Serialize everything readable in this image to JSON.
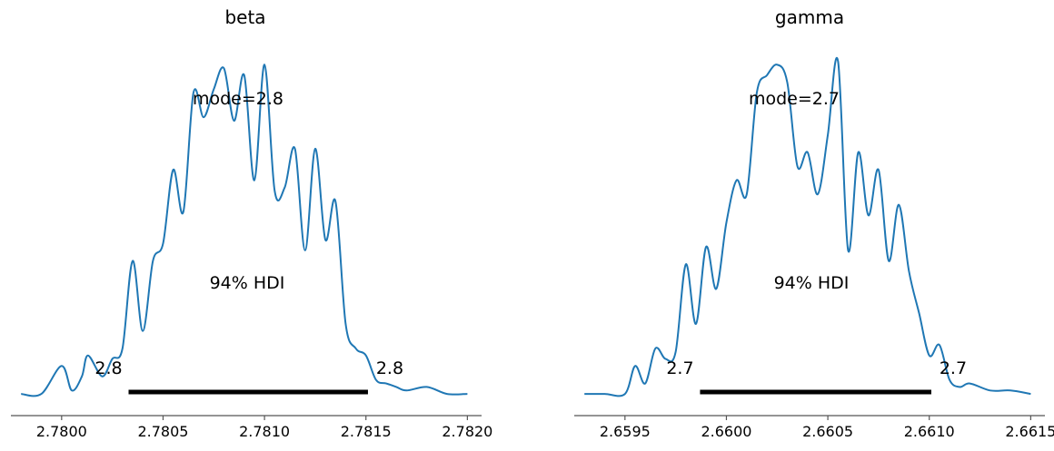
{
  "colors": {
    "line": "#1f77b4",
    "hdi": "#000000",
    "axis": "#555555"
  },
  "chart_data": [
    {
      "type": "line",
      "title": "beta",
      "xlim": [
        2.77975,
        2.78207
      ],
      "ylim": [
        0,
        1
      ],
      "x_ticks": [
        2.78,
        2.7805,
        2.781,
        2.7815,
        2.782
      ],
      "x_tick_labels": [
        "2.7800",
        "2.7805",
        "2.7810",
        "2.7815",
        "2.7820"
      ],
      "mode_label": "mode=2.8",
      "hdi_label": "94% HDI",
      "hdi_low": 2.78033,
      "hdi_high": 2.78151,
      "hdi_low_label": "2.8",
      "hdi_high_label": "2.8",
      "x": [
        2.7798,
        2.7799,
        2.78,
        2.78005,
        2.7801,
        2.78013,
        2.7802,
        2.78025,
        2.7803,
        2.78035,
        2.7804,
        2.78045,
        2.7805,
        2.78055,
        2.7806,
        2.78065,
        2.7807,
        2.78075,
        2.7808,
        2.78085,
        2.7809,
        2.78095,
        2.781,
        2.78105,
        2.7811,
        2.78115,
        2.7812,
        2.78125,
        2.7813,
        2.78135,
        2.7814,
        2.78145,
        2.7815,
        2.78155,
        2.7816,
        2.78165,
        2.7817,
        2.7818,
        2.7819,
        2.782
      ],
      "y": [
        0.01,
        0.01,
        0.09,
        0.02,
        0.06,
        0.12,
        0.06,
        0.11,
        0.14,
        0.39,
        0.19,
        0.39,
        0.44,
        0.65,
        0.53,
        0.87,
        0.8,
        0.88,
        0.94,
        0.79,
        0.92,
        0.62,
        0.95,
        0.59,
        0.6,
        0.71,
        0.42,
        0.71,
        0.45,
        0.56,
        0.21,
        0.14,
        0.12,
        0.05,
        0.04,
        0.03,
        0.02,
        0.03,
        0.01,
        0.01
      ]
    },
    {
      "type": "line",
      "title": "gamma",
      "xlim": [
        2.65925,
        2.66157
      ],
      "ylim": [
        0,
        1
      ],
      "x_ticks": [
        2.6595,
        2.66,
        2.6605,
        2.661,
        2.6615
      ],
      "x_tick_labels": [
        "2.6595",
        "2.6600",
        "2.6605",
        "2.6610",
        "2.6615"
      ],
      "mode_label": "mode=2.7",
      "hdi_label": "94% HDI",
      "hdi_low": 2.65987,
      "hdi_high": 2.66101,
      "hdi_low_label": "2.7",
      "hdi_high_label": "2.7",
      "x": [
        2.6593,
        2.6594,
        2.6595,
        2.65955,
        2.6596,
        2.65965,
        2.6597,
        2.65975,
        2.6598,
        2.65985,
        2.6599,
        2.65995,
        2.66,
        2.66005,
        2.6601,
        2.66015,
        2.6602,
        2.66025,
        2.6603,
        2.66035,
        2.6604,
        2.66045,
        2.6605,
        2.66055,
        2.6606,
        2.66065,
        2.6607,
        2.66075,
        2.6608,
        2.66085,
        2.6609,
        2.66095,
        2.661,
        2.66105,
        2.6611,
        2.66115,
        2.6612,
        2.6613,
        2.6614,
        2.6615
      ],
      "y": [
        0.01,
        0.01,
        0.01,
        0.09,
        0.04,
        0.14,
        0.11,
        0.13,
        0.38,
        0.21,
        0.43,
        0.31,
        0.5,
        0.62,
        0.58,
        0.87,
        0.92,
        0.95,
        0.9,
        0.66,
        0.7,
        0.58,
        0.75,
        0.96,
        0.42,
        0.7,
        0.52,
        0.65,
        0.39,
        0.55,
        0.36,
        0.24,
        0.12,
        0.15,
        0.05,
        0.03,
        0.04,
        0.02,
        0.02,
        0.01
      ]
    }
  ]
}
